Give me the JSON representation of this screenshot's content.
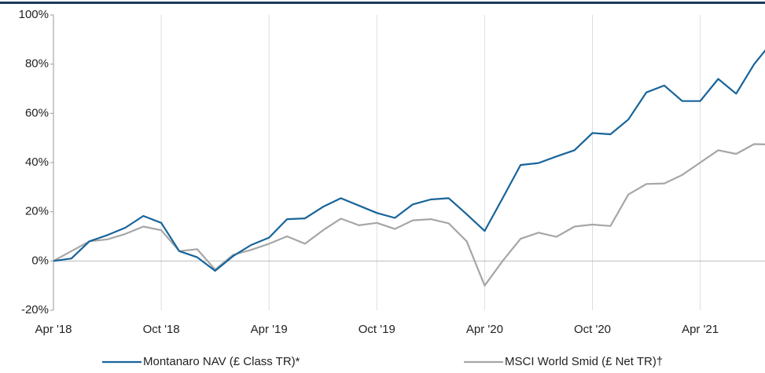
{
  "chart_data": {
    "type": "line",
    "categories": [
      "Apr '18",
      null,
      null,
      null,
      null,
      null,
      "Oct '18",
      null,
      null,
      null,
      null,
      null,
      "Apr '19",
      null,
      null,
      null,
      null,
      null,
      "Oct '19",
      null,
      null,
      null,
      null,
      null,
      "Apr '20",
      null,
      null,
      null,
      null,
      null,
      "Oct '20",
      null,
      null,
      null,
      null,
      null,
      "Apr '21",
      null,
      null,
      null,
      null
    ],
    "series": [
      {
        "name": "Montanaro NAV (£ Class TR)*",
        "color": "#17649a",
        "values": [
          0,
          1,
          8,
          10.5,
          13.5,
          18.3,
          15.5,
          4,
          1.5,
          -4,
          2,
          6.5,
          9.5,
          17,
          17.3,
          22,
          25.5,
          22.5,
          19.5,
          17.5,
          23,
          25,
          25.5,
          19,
          12.2,
          25.5,
          39,
          39.8,
          42.5,
          45,
          52,
          51.5,
          57.5,
          68.5,
          71.3,
          65,
          65,
          74,
          68,
          80,
          89
        ]
      },
      {
        "name": "MSCI World Smid (£ Net TR)†",
        "color": "#a6a6a6",
        "values": [
          0,
          4,
          8,
          8.8,
          11,
          14,
          12.5,
          4,
          4.8,
          -3.5,
          2.5,
          4.5,
          7,
          10,
          7,
          12.5,
          17.2,
          14.5,
          15.5,
          13,
          16.5,
          17,
          15.3,
          8,
          -10,
          0,
          9,
          11.5,
          9.8,
          14,
          14.8,
          14.2,
          27,
          31.3,
          31.5,
          35,
          40,
          45,
          43.5,
          47.5,
          47.3
        ]
      }
    ],
    "ylim": [
      -20,
      100
    ],
    "yticks": [
      {
        "value": -20,
        "label": "-20%"
      },
      {
        "value": 0,
        "label": "0%"
      },
      {
        "value": 20,
        "label": "20%"
      },
      {
        "value": 40,
        "label": "40%"
      },
      {
        "value": 60,
        "label": "60%"
      },
      {
        "value": 80,
        "label": "80%"
      },
      {
        "value": 100,
        "label": "100%"
      }
    ],
    "grid": "x"
  }
}
